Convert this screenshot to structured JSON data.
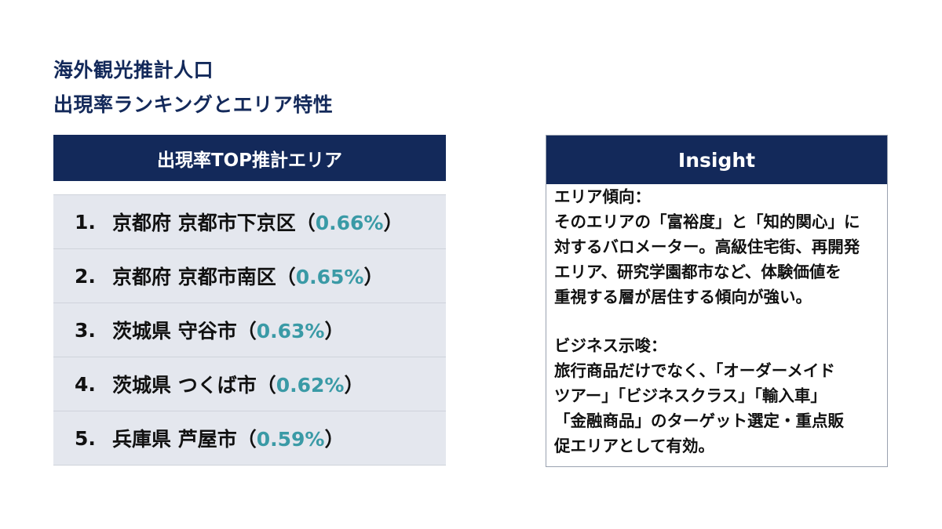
{
  "title_lines": [
    "海外観光推計人口",
    "出現率ランキングとエリア特性"
  ],
  "ranking": {
    "header": "出現率TOP推計エリア",
    "items": [
      {
        "rank": "1.",
        "area": "京都府 京都市下京区",
        "rate": "0.66%"
      },
      {
        "rank": "2.",
        "area": "京都府 京都市南区",
        "rate": "0.65%"
      },
      {
        "rank": "3.",
        "area": "茨城県 守谷市",
        "rate": "0.63%"
      },
      {
        "rank": "4.",
        "area": "茨城県 つくば市",
        "rate": "0.62%"
      },
      {
        "rank": "5.",
        "area": "兵庫県 芦屋市",
        "rate": "0.59%"
      }
    ]
  },
  "insight": {
    "header": "Insight",
    "section1_lines": [
      "エリア傾向：",
      "そのエリアの「富裕度」と「知的関心」に",
      "対するバロメーター。高級住宅街、再開発",
      "エリア、研究学園都市など、体験価値を",
      "重視する層が居住する傾向が強い。"
    ],
    "section2_lines": [
      "ビジネス示唆：",
      "旅行商品だけでなく、「オーダーメイド",
      "ツアー」「ビジネスクラス」「輸入車」",
      "「金融商品」のターゲット選定・重点販",
      "促エリアとして有効。"
    ]
  },
  "colors": {
    "navy": "#13295a",
    "accent": "#3a9aa6",
    "row_bg": "#e4e7ee"
  }
}
